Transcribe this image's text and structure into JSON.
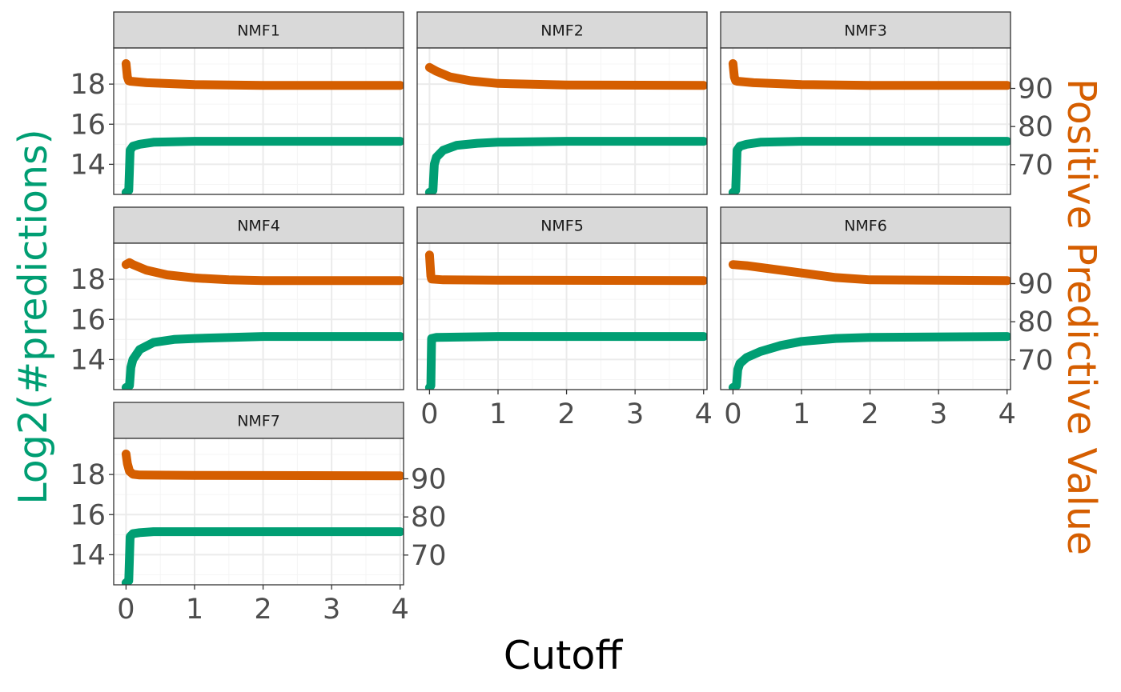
{
  "chart_data": {
    "type": "line",
    "layout": "facet_wrap",
    "xlabel": "Cutoff",
    "ylabel_left": "Log2(#predictions)",
    "ylabel_right": "Positive Predictive Value",
    "colors": {
      "log2_predictions": "#009E73",
      "ppv": "#D55E00",
      "left_label": "#009E73",
      "right_label": "#D55E00",
      "strip_fill": "#d9d9d9",
      "grid_major": "#ebebeb",
      "grid_minor": "#f5f5f5"
    },
    "xlim": [
      -0.18,
      4.05
    ],
    "ylim_left": [
      12.5,
      19.8
    ],
    "ylim_right": [
      62.2,
      100.6
    ],
    "x_ticks": [
      "0",
      "1",
      "2",
      "3",
      "4"
    ],
    "y_left_ticks": [
      "14",
      "16",
      "18"
    ],
    "y_right_ticks": [
      "70",
      "80",
      "90"
    ],
    "grid": true,
    "panels": [
      {
        "name": "NMF1",
        "series": [
          {
            "key": "log2_predictions",
            "x": [
              0,
              0.04,
              0.06,
              0.1,
              0.2,
              0.4,
              1,
              2,
              4
            ],
            "y": [
              12.6,
              12.7,
              14.7,
              14.9,
              15.0,
              15.1,
              15.15,
              15.15,
              15.15
            ]
          },
          {
            "key": "ppv",
            "x": [
              0,
              0.02,
              0.04,
              0.06,
              0.3,
              1,
              2,
              4
            ],
            "y": [
              96.5,
              93.0,
              92.0,
              91.9,
              91.5,
              91.0,
              90.8,
              90.8
            ]
          }
        ]
      },
      {
        "name": "NMF2",
        "series": [
          {
            "key": "log2_predictions",
            "x": [
              0,
              0.05,
              0.07,
              0.1,
              0.2,
              0.4,
              0.7,
              1,
              2,
              4
            ],
            "y": [
              12.6,
              12.7,
              14.0,
              14.35,
              14.7,
              14.95,
              15.05,
              15.1,
              15.15,
              15.15
            ]
          },
          {
            "key": "ppv",
            "x": [
              0,
              0.1,
              0.3,
              0.6,
              1,
              2,
              4
            ],
            "y": [
              95.5,
              94.5,
              93.0,
              92.0,
              91.3,
              90.9,
              90.8
            ]
          }
        ]
      },
      {
        "name": "NMF3",
        "series": [
          {
            "key": "log2_predictions",
            "x": [
              0,
              0.04,
              0.06,
              0.1,
              0.2,
              0.4,
              1,
              2,
              4
            ],
            "y": [
              12.6,
              12.7,
              14.7,
              14.9,
              15.0,
              15.1,
              15.15,
              15.15,
              15.15
            ]
          },
          {
            "key": "ppv",
            "x": [
              0,
              0.02,
              0.04,
              0.06,
              0.3,
              1,
              2,
              4
            ],
            "y": [
              96.5,
              93.0,
              92.0,
              91.9,
              91.5,
              91.0,
              90.8,
              90.8
            ]
          }
        ]
      },
      {
        "name": "NMF4",
        "series": [
          {
            "key": "log2_predictions",
            "x": [
              0,
              0.05,
              0.07,
              0.1,
              0.2,
              0.4,
              0.7,
              1,
              2,
              4
            ],
            "y": [
              12.6,
              12.7,
              13.6,
              14.0,
              14.5,
              14.85,
              15.0,
              15.05,
              15.15,
              15.15
            ]
          },
          {
            "key": "ppv",
            "x": [
              0,
              0.05,
              0.1,
              0.3,
              0.6,
              1,
              1.5,
              2,
              4
            ],
            "y": [
              95.0,
              95.5,
              95.0,
              93.5,
              92.3,
              91.5,
              91.0,
              90.8,
              90.8
            ]
          }
        ]
      },
      {
        "name": "NMF5",
        "series": [
          {
            "key": "log2_predictions",
            "x": [
              0,
              0.02,
              0.03,
              0.1,
              1,
              4
            ],
            "y": [
              12.6,
              12.7,
              15.05,
              15.1,
              15.15,
              15.15
            ]
          },
          {
            "key": "ppv",
            "x": [
              0,
              0.02,
              0.03,
              0.2,
              1,
              4
            ],
            "y": [
              97.5,
              92.0,
              91.2,
              91.0,
              90.9,
              90.8
            ]
          }
        ]
      },
      {
        "name": "NMF6",
        "series": [
          {
            "key": "log2_predictions",
            "x": [
              0,
              0.05,
              0.07,
              0.1,
              0.2,
              0.4,
              0.7,
              1,
              1.5,
              2,
              4
            ],
            "y": [
              12.6,
              12.7,
              13.5,
              13.8,
              14.1,
              14.4,
              14.7,
              14.9,
              15.05,
              15.1,
              15.15
            ]
          },
          {
            "key": "ppv",
            "x": [
              0,
              0.2,
              0.5,
              1,
              1.5,
              2,
              4
            ],
            "y": [
              95.0,
              94.7,
              94.0,
              92.8,
              91.6,
              91.0,
              90.8
            ]
          }
        ]
      },
      {
        "name": "NMF7",
        "series": [
          {
            "key": "log2_predictions",
            "x": [
              0,
              0.04,
              0.06,
              0.1,
              0.2,
              0.4,
              1,
              4
            ],
            "y": [
              12.6,
              12.7,
              14.9,
              15.05,
              15.1,
              15.15,
              15.15,
              15.15
            ]
          },
          {
            "key": "ppv",
            "x": [
              0,
              0.02,
              0.05,
              0.1,
              0.2,
              1,
              4
            ],
            "y": [
              96.5,
              94.0,
              92.0,
              91.2,
              91.0,
              90.9,
              90.8
            ]
          }
        ]
      }
    ]
  }
}
